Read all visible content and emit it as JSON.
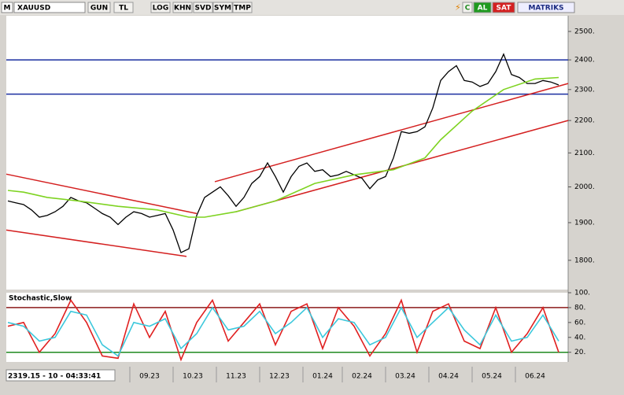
{
  "toolbar": {
    "symbol_icon": "M",
    "symbol": "XAUUSD",
    "buttons": [
      "GUN",
      "TL",
      "LOG",
      "KHN",
      "SVD",
      "SYM",
      "TMP"
    ],
    "status": [
      "C",
      "AL",
      "SAT"
    ],
    "brand": "MATRIKS"
  },
  "status_bar": "2319.15 - 10 - 04:33:41",
  "chart_data": [
    {
      "type": "line",
      "log_scale": true,
      "x": [
        0,
        1,
        2,
        3,
        4,
        5,
        6,
        7,
        8,
        9,
        10,
        11,
        12,
        13,
        14,
        15,
        16,
        17,
        18,
        19,
        20,
        21,
        22,
        23,
        24,
        25,
        26,
        27,
        28,
        29,
        30,
        31,
        32,
        33,
        34,
        35,
        36,
        37,
        38,
        39,
        40,
        41,
        42,
        43,
        44,
        45,
        46,
        47,
        48,
        49,
        50,
        51,
        52,
        53,
        54,
        55,
        56,
        57,
        58,
        59,
        60,
        61,
        62,
        63,
        64,
        65,
        66,
        67,
        68,
        69,
        70
      ],
      "xlim": [
        -0.2,
        71.2
      ],
      "ylim": [
        1726,
        2557
      ],
      "yticks": [
        {
          "value": 2500,
          "label": "2500."
        },
        {
          "value": 2400,
          "label": "2400."
        },
        {
          "value": 2300,
          "label": "2300."
        },
        {
          "value": 2200,
          "label": "2200."
        },
        {
          "value": 2100,
          "label": "2100."
        },
        {
          "value": 2000,
          "label": "2000."
        },
        {
          "value": 1900,
          "label": "1900."
        },
        {
          "value": 1800,
          "label": "1800."
        }
      ],
      "series": [
        {
          "color": "#000000",
          "values": [
            1960,
            1955,
            1950,
            1935,
            1915,
            1920,
            1930,
            1945,
            1970,
            1960,
            1955,
            1940,
            1925,
            1915,
            1895,
            1915,
            1930,
            1925,
            1915,
            1920,
            1925,
            1880,
            1820,
            1830,
            1920,
            1970,
            1985,
            2000,
            1975,
            1945,
            1970,
            2010,
            2030,
            2070,
            2030,
            1985,
            2030,
            2060,
            2070,
            2045,
            2050,
            2030,
            2035,
            2045,
            2035,
            2025,
            1995,
            2020,
            2030,
            2085,
            2165,
            2160,
            2165,
            2180,
            2240,
            2330,
            2360,
            2380,
            2330,
            2325,
            2310,
            2320,
            2360,
            2420,
            2350,
            2340,
            2320,
            2320,
            2330,
            2325,
            2315
          ]
        },
        {
          "color": "#7ed321",
          "x": [
            0,
            2,
            5,
            9,
            14,
            19,
            23,
            25,
            29,
            34,
            39,
            44,
            49,
            53,
            55,
            59,
            63,
            67,
            70
          ],
          "values": [
            1990,
            1985,
            1970,
            1960,
            1945,
            1935,
            1915,
            1915,
            1930,
            1960,
            2010,
            2035,
            2050,
            2085,
            2140,
            2230,
            2300,
            2335,
            2340
          ]
        }
      ],
      "hlines": [
        {
          "value": 2400,
          "color": "#1a2fa0"
        },
        {
          "value": 2285,
          "color": "#1a2fa0"
        }
      ],
      "trend_lines": [
        {
          "x": [
            -0.2,
            24
          ],
          "y": [
            2037,
            1925
          ],
          "color": "#d42020"
        },
        {
          "x": [
            -0.2,
            22.7
          ],
          "y": [
            1880,
            1810
          ],
          "color": "#d42020"
        },
        {
          "x": [
            26.3,
            71.2
          ],
          "y": [
            2015,
            2320
          ],
          "color": "#d42020"
        },
        {
          "x": [
            29,
            71.2
          ],
          "y": [
            1930,
            2200
          ],
          "color": "#d42020"
        }
      ]
    },
    {
      "type": "line",
      "title": "Stochastic,Slow",
      "x": [
        0,
        2,
        4,
        6,
        8,
        10,
        12,
        14,
        16,
        18,
        20,
        22,
        24,
        26,
        28,
        30,
        32,
        34,
        36,
        38,
        40,
        42,
        44,
        46,
        48,
        50,
        52,
        54,
        56,
        58,
        60,
        62,
        64,
        66,
        68,
        70
      ],
      "xlim": [
        -0.2,
        71.2
      ],
      "xticks": [
        {
          "value": 18,
          "label": "09.23"
        },
        {
          "value": 23.5,
          "label": "10.23"
        },
        {
          "value": 29,
          "label": "11.23"
        },
        {
          "value": 34.5,
          "label": "12.23"
        },
        {
          "value": 40,
          "label": "01.24"
        },
        {
          "value": 45,
          "label": "02.24"
        },
        {
          "value": 50.5,
          "label": "03.24"
        },
        {
          "value": 56,
          "label": "04.24"
        },
        {
          "value": 61.5,
          "label": "05.24"
        },
        {
          "value": 67,
          "label": "06.24"
        }
      ],
      "ylim": [
        7,
        100
      ],
      "yticks": [
        {
          "value": 100,
          "label": "100."
        },
        {
          "value": 80,
          "label": "80."
        },
        {
          "value": 60,
          "label": "60."
        },
        {
          "value": 40,
          "label": "40."
        },
        {
          "value": 20,
          "label": "20."
        }
      ],
      "series": [
        {
          "color": "#e02020",
          "values": [
            55,
            60,
            20,
            45,
            90,
            60,
            15,
            12,
            85,
            40,
            75,
            10,
            60,
            90,
            35,
            60,
            85,
            30,
            75,
            85,
            25,
            80,
            55,
            15,
            45,
            90,
            20,
            75,
            85,
            35,
            25,
            80,
            20,
            45,
            80,
            20
          ]
        },
        {
          "color": "#3cc8dc",
          "values": [
            60,
            55,
            35,
            40,
            75,
            70,
            30,
            15,
            60,
            55,
            65,
            25,
            45,
            80,
            50,
            55,
            75,
            45,
            60,
            80,
            40,
            65,
            60,
            30,
            40,
            80,
            40,
            60,
            80,
            50,
            30,
            70,
            35,
            40,
            70,
            35
          ]
        }
      ],
      "hlines": [
        {
          "value": 80,
          "color": "#8b1a1a"
        },
        {
          "value": 20,
          "color": "#1f8a1f"
        }
      ]
    }
  ]
}
